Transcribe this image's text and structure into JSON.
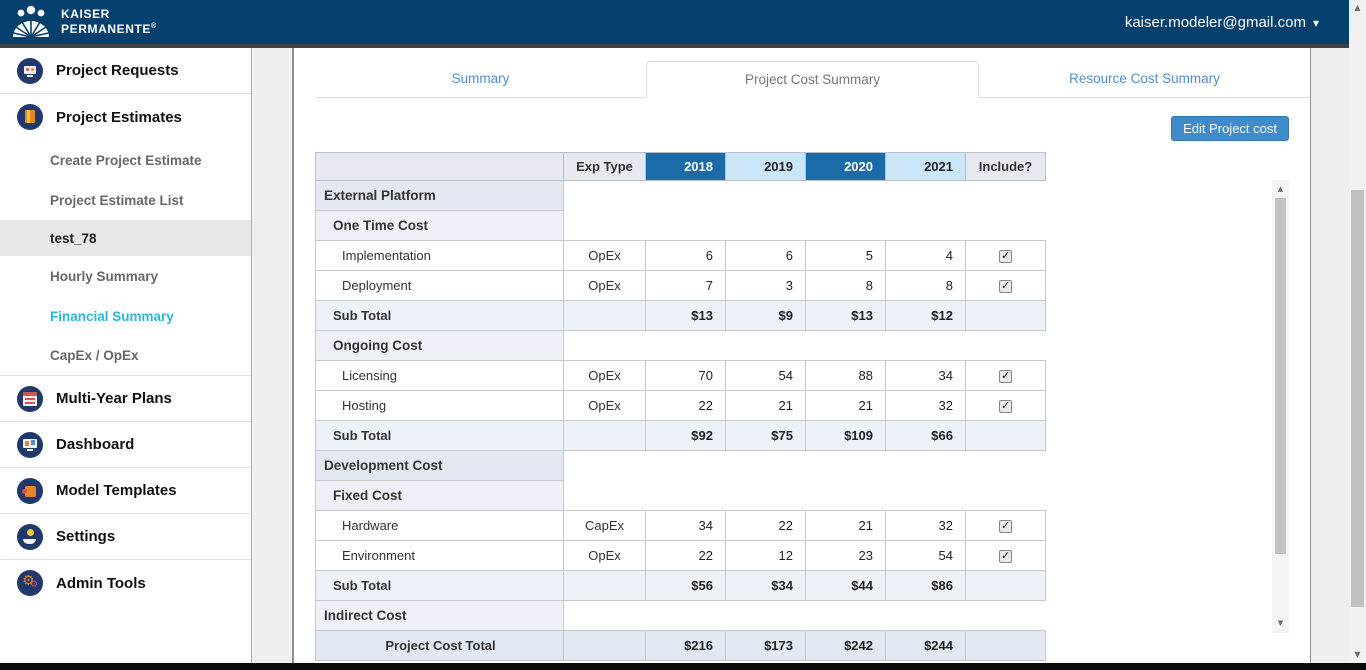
{
  "header": {
    "brand_line1": "KAISER",
    "brand_line2": "PERMANENTE",
    "brand_reg": "®",
    "user_email": "kaiser.modeler@gmail.com"
  },
  "icons": {
    "user-menu-caret": "▾",
    "scroll-up": "▲",
    "scroll-down": "▼",
    "checkbox-check": "✓",
    "gear": "⚙"
  },
  "sidebar": {
    "items": [
      {
        "label": "Project Requests",
        "kind": "main",
        "icon": "project-requests",
        "divider": true
      },
      {
        "label": "Project Estimates",
        "kind": "main",
        "icon": "project-estimates"
      },
      {
        "label": "Create Project Estimate",
        "kind": "sub"
      },
      {
        "label": "Project Estimate List",
        "kind": "sub"
      },
      {
        "label": "test_78",
        "kind": "sub",
        "state": "selected"
      },
      {
        "label": "Hourly Summary",
        "kind": "sub"
      },
      {
        "label": "Financial Summary",
        "kind": "sub",
        "state": "active"
      },
      {
        "label": "CapEx / OpEx",
        "kind": "sub",
        "divider": true
      },
      {
        "label": "Multi-Year Plans",
        "kind": "main",
        "icon": "multi-year-plans",
        "divider": true
      },
      {
        "label": "Dashboard",
        "kind": "main",
        "icon": "dashboard",
        "divider": true
      },
      {
        "label": "Model Templates",
        "kind": "main",
        "icon": "model-templates",
        "divider": true
      },
      {
        "label": "Settings",
        "kind": "main",
        "icon": "settings",
        "divider": true
      },
      {
        "label": "Admin Tools",
        "kind": "main",
        "icon": "admin-tools"
      }
    ]
  },
  "tabs": [
    {
      "label": "Summary",
      "active": false
    },
    {
      "label": "Project Cost Summary",
      "active": true
    },
    {
      "label": "Resource Cost Summary",
      "active": false
    }
  ],
  "toolbar": {
    "edit_button": "Edit Project cost"
  },
  "table": {
    "columns": [
      "",
      "Exp Type",
      "2018",
      "2019",
      "2020",
      "2021",
      "Include?"
    ],
    "rows": [
      {
        "type": "section",
        "indent": 0,
        "label": "External Platform"
      },
      {
        "type": "subsection",
        "indent": 1,
        "label": "One Time Cost"
      },
      {
        "type": "item",
        "indent": 2,
        "label": "Implementation",
        "exp_type": "OpEx",
        "values": [
          "6",
          "6",
          "5",
          "4"
        ],
        "include": true
      },
      {
        "type": "item",
        "indent": 2,
        "label": "Deployment",
        "exp_type": "OpEx",
        "values": [
          "7",
          "3",
          "8",
          "8"
        ],
        "include": true
      },
      {
        "type": "subtotal",
        "indent": 1,
        "label": "Sub Total",
        "values": [
          "$13",
          "$9",
          "$13",
          "$12"
        ]
      },
      {
        "type": "subsection",
        "indent": 1,
        "label": "Ongoing Cost"
      },
      {
        "type": "item",
        "indent": 2,
        "label": "Licensing",
        "exp_type": "OpEx",
        "values": [
          "70",
          "54",
          "88",
          "34"
        ],
        "include": true
      },
      {
        "type": "item",
        "indent": 2,
        "label": "Hosting",
        "exp_type": "OpEx",
        "values": [
          "22",
          "21",
          "21",
          "32"
        ],
        "include": true
      },
      {
        "type": "subtotal",
        "indent": 1,
        "label": "Sub Total",
        "values": [
          "$92",
          "$75",
          "$109",
          "$66"
        ]
      },
      {
        "type": "section",
        "indent": 0,
        "label": "Development Cost"
      },
      {
        "type": "subsection",
        "indent": 1,
        "label": "Fixed Cost"
      },
      {
        "type": "item",
        "indent": 2,
        "label": "Hardware",
        "exp_type": "CapEx",
        "values": [
          "34",
          "22",
          "21",
          "32"
        ],
        "include": true
      },
      {
        "type": "item",
        "indent": 2,
        "label": "Environment",
        "exp_type": "OpEx",
        "values": [
          "22",
          "12",
          "23",
          "54"
        ],
        "include": true
      },
      {
        "type": "subtotal",
        "indent": 1,
        "label": "Sub Total",
        "values": [
          "$56",
          "$34",
          "$44",
          "$86"
        ]
      },
      {
        "type": "subsection",
        "indent": 0,
        "label": "Indirect Cost"
      },
      {
        "type": "total",
        "indent": 0,
        "label": "Project Cost Total",
        "values": [
          "$216",
          "$173",
          "$242",
          "$244"
        ]
      }
    ]
  },
  "colors": {
    "brand_navy": "#04406e",
    "header_edge": "#3f4245",
    "accent_blue": "#428bca",
    "link_blue": "#4a90d2",
    "active_tab_text": "#777777",
    "cyan_active": "#29b7d9",
    "year_dark": "#1b6ba8",
    "year_light": "#cbe6f8",
    "head_cell_bg": "#e6eaf0",
    "section_bg": "#e3e7ef",
    "subsection_bg": "#edf1f7",
    "subtotal_bg": "#edf2f8",
    "total_bg": "#e2e8f1",
    "sidebar_selected_bg": "#e8e8e8",
    "border_gray": "#c8c8c8"
  }
}
